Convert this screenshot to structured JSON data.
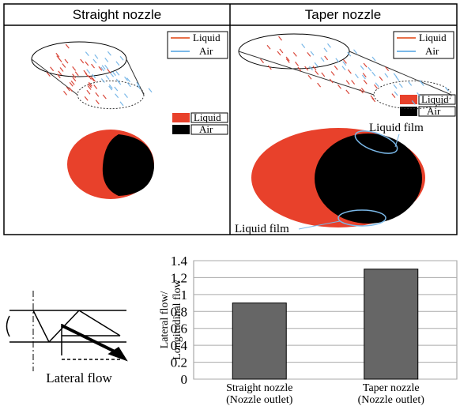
{
  "panels": [
    {
      "title": "Straight nozzle",
      "legend_lines": [
        "Liquid",
        "Air"
      ],
      "legend_boxes": [
        "Liquid",
        "Air"
      ]
    },
    {
      "title": "Taper nozzle",
      "legend_lines": [
        "Liquid",
        "Air"
      ],
      "legend_boxes": [
        "Liquid",
        "Air"
      ],
      "annotations": [
        "Liquid film",
        "Liquid film"
      ]
    }
  ],
  "diagram": {
    "label": "Lateral flow"
  },
  "chart_data": {
    "type": "bar",
    "ylabel": [
      "Lateral flow/",
      "Longitudinal flow"
    ],
    "categories": [
      "Straight nozzle",
      "Taper nozzle"
    ],
    "category_notes": [
      "(Nozzle outlet)",
      "(Nozzle outlet)"
    ],
    "values": [
      0.9,
      1.3
    ],
    "color": "#666666",
    "ylim": [
      0,
      1.4
    ],
    "yticks": [
      0,
      0.2,
      0.4,
      0.6,
      0.8,
      1,
      1.2,
      1.4
    ],
    "grid": true
  }
}
